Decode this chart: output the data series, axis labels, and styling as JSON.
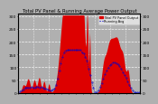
{
  "title": "Total PV Panel & Running Average Power Output",
  "legend_labels": [
    "Total PV Panel Output",
    "Running Avg"
  ],
  "bar_color": "#dd0000",
  "avg_color": "#0000cc",
  "background_color": "#b0b0b0",
  "ylim": [
    0,
    310
  ],
  "yticks": [
    0,
    50,
    100,
    150,
    200,
    250,
    300
  ],
  "grid_color": "#ffffff",
  "title_fontsize": 3.8,
  "axis_fontsize": 3.2,
  "n_points": 300,
  "seed": 10
}
